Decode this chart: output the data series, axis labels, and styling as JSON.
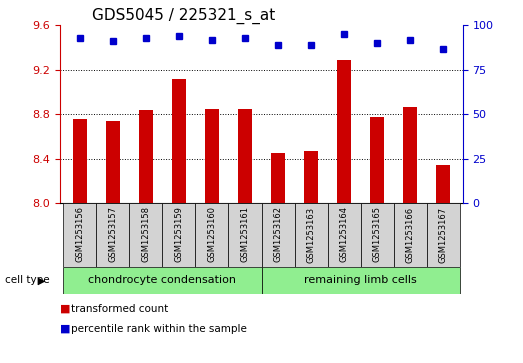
{
  "title": "GDS5045 / 225321_s_at",
  "samples": [
    "GSM1253156",
    "GSM1253157",
    "GSM1253158",
    "GSM1253159",
    "GSM1253160",
    "GSM1253161",
    "GSM1253162",
    "GSM1253163",
    "GSM1253164",
    "GSM1253165",
    "GSM1253166",
    "GSM1253167"
  ],
  "transformed_count": [
    8.76,
    8.74,
    8.84,
    9.12,
    8.85,
    8.85,
    8.45,
    8.47,
    9.29,
    8.78,
    8.87,
    8.34
  ],
  "percentile_rank": [
    93,
    91,
    93,
    94,
    92,
    93,
    89,
    89,
    95,
    90,
    92,
    87
  ],
  "bar_color": "#cc0000",
  "dot_color": "#0000cc",
  "ylim_left": [
    8.0,
    9.6
  ],
  "ylim_right": [
    0,
    100
  ],
  "yticks_left": [
    8.0,
    8.4,
    8.8,
    9.2,
    9.6
  ],
  "yticks_right": [
    0,
    25,
    50,
    75,
    100
  ],
  "cell_type_groups": [
    {
      "label": "chondrocyte condensation",
      "start": 0,
      "end": 5,
      "color": "#90ee90"
    },
    {
      "label": "remaining limb cells",
      "start": 6,
      "end": 11,
      "color": "#90ee90"
    }
  ],
  "cell_type_label": "cell type",
  "legend_items": [
    {
      "label": "transformed count",
      "color": "#cc0000"
    },
    {
      "label": "percentile rank within the sample",
      "color": "#0000cc"
    }
  ],
  "xlabel_bg": "#d3d3d3",
  "tick_color_left": "#cc0000",
  "tick_color_right": "#0000cc",
  "title_fontsize": 11,
  "axis_fontsize": 8,
  "label_fontsize": 7.5,
  "grid_yticks": [
    8.4,
    8.8,
    9.2
  ]
}
